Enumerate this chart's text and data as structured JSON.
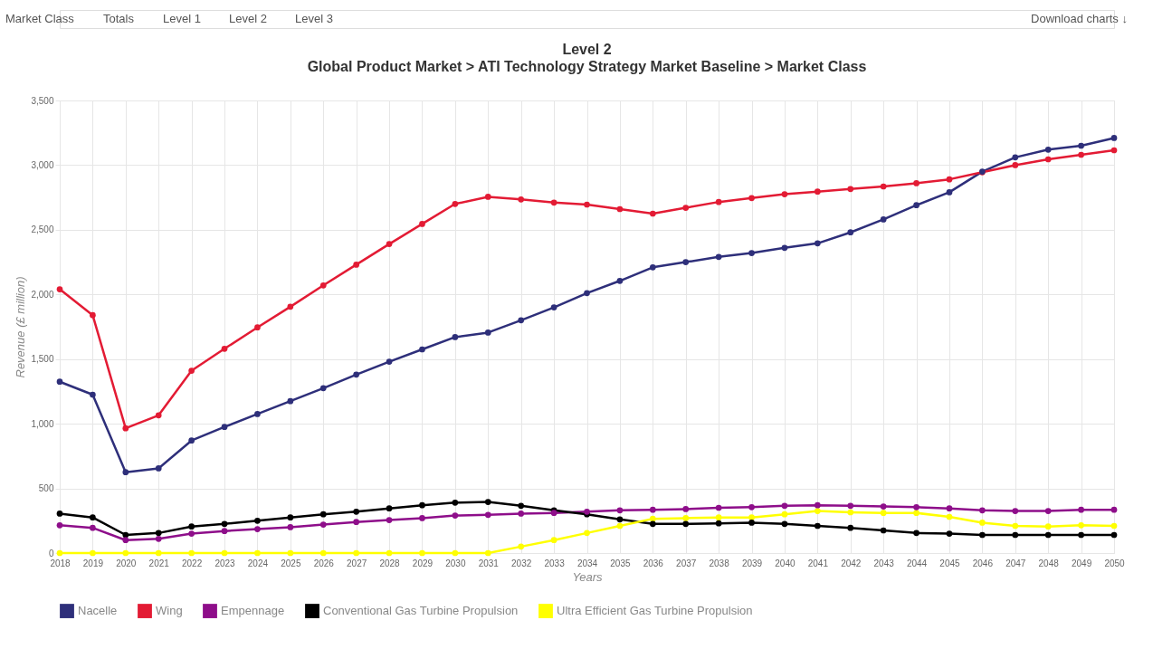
{
  "chart_data": {
    "type": "line",
    "title": "Level 2",
    "subtitle": "Global Product Market > ATI Technology Strategy Market Baseline > Market Class",
    "xlabel": "Years",
    "ylabel": "Revenue (£ million)",
    "annotations": [
      "Market Class",
      "Totals",
      "Level 1",
      "Level 2",
      "Level 3",
      "Download charts ↓"
    ],
    "x": [
      2018,
      2019,
      2020,
      2021,
      2022,
      2023,
      2024,
      2025,
      2026,
      2027,
      2028,
      2029,
      2030,
      2031,
      2032,
      2033,
      2034,
      2035,
      2036,
      2037,
      2038,
      2039,
      2040,
      2041,
      2042,
      2043,
      2044,
      2045,
      2046,
      2047,
      2048,
      2049,
      2050
    ],
    "xlim": [
      2018,
      2050
    ],
    "xticks": [
      2018,
      2019,
      2020,
      2021,
      2022,
      2023,
      2024,
      2025,
      2026,
      2027,
      2028,
      2029,
      2030,
      2031,
      2032,
      2033,
      2034,
      2035,
      2036,
      2037,
      2038,
      2039,
      2040,
      2041,
      2042,
      2043,
      2044,
      2045,
      2046,
      2047,
      2048,
      2049,
      2050
    ],
    "ylim": [
      0,
      3500
    ],
    "yticks": [
      {
        "value": 0,
        "label": "0"
      },
      {
        "value": 500,
        "label": "500"
      },
      {
        "value": 1000,
        "label": "1,000"
      },
      {
        "value": 1500,
        "label": "1,500"
      },
      {
        "value": 2000,
        "label": "2,000"
      },
      {
        "value": 2500,
        "label": "2,500"
      },
      {
        "value": 3000,
        "label": "3,000"
      },
      {
        "value": 3500,
        "label": "3,500"
      }
    ],
    "grid": true,
    "legend": "bottom left",
    "marker": "circle",
    "line_style": "solid",
    "series": [
      {
        "name": "Nacelle",
        "color": "#2e2f7a",
        "values": [
          1325,
          1225,
          625,
          655,
          870,
          975,
          1075,
          1175,
          1275,
          1380,
          1480,
          1575,
          1670,
          1705,
          1800,
          1900,
          2010,
          2105,
          2210,
          2250,
          2290,
          2320,
          2360,
          2395,
          2480,
          2580,
          2690,
          2790,
          2950,
          3060,
          3120,
          3150,
          3210
        ]
      },
      {
        "name": "Wing",
        "color": "#e31b34",
        "values": [
          2040,
          1840,
          965,
          1065,
          1410,
          1580,
          1745,
          1905,
          2070,
          2230,
          2390,
          2545,
          2700,
          2755,
          2735,
          2710,
          2695,
          2660,
          2625,
          2670,
          2715,
          2745,
          2775,
          2795,
          2815,
          2835,
          2860,
          2890,
          2945,
          3000,
          3045,
          3080,
          3115
        ]
      },
      {
        "name": "Empennage",
        "color": "#8e0e8a",
        "values": [
          215,
          195,
          100,
          110,
          150,
          170,
          185,
          200,
          220,
          240,
          255,
          270,
          290,
          295,
          305,
          310,
          320,
          330,
          335,
          340,
          350,
          355,
          365,
          370,
          365,
          360,
          355,
          345,
          330,
          325,
          325,
          335,
          335
        ]
      },
      {
        "name": "Conventional Gas Turbine Propulsion",
        "color": "#000000",
        "values": [
          305,
          275,
          140,
          155,
          205,
          225,
          250,
          275,
          300,
          320,
          345,
          370,
          390,
          395,
          365,
          330,
          300,
          260,
          225,
          225,
          230,
          235,
          225,
          210,
          195,
          175,
          155,
          150,
          140,
          140,
          140,
          140,
          140
        ]
      },
      {
        "name": "Ultra Efficient Gas Turbine Propulsion",
        "color": "#ffff00",
        "values": [
          0,
          0,
          0,
          0,
          0,
          0,
          0,
          0,
          0,
          0,
          0,
          0,
          0,
          0,
          50,
          100,
          155,
          210,
          265,
          270,
          275,
          275,
          300,
          325,
          315,
          310,
          310,
          280,
          235,
          210,
          205,
          215,
          210
        ]
      }
    ]
  }
}
